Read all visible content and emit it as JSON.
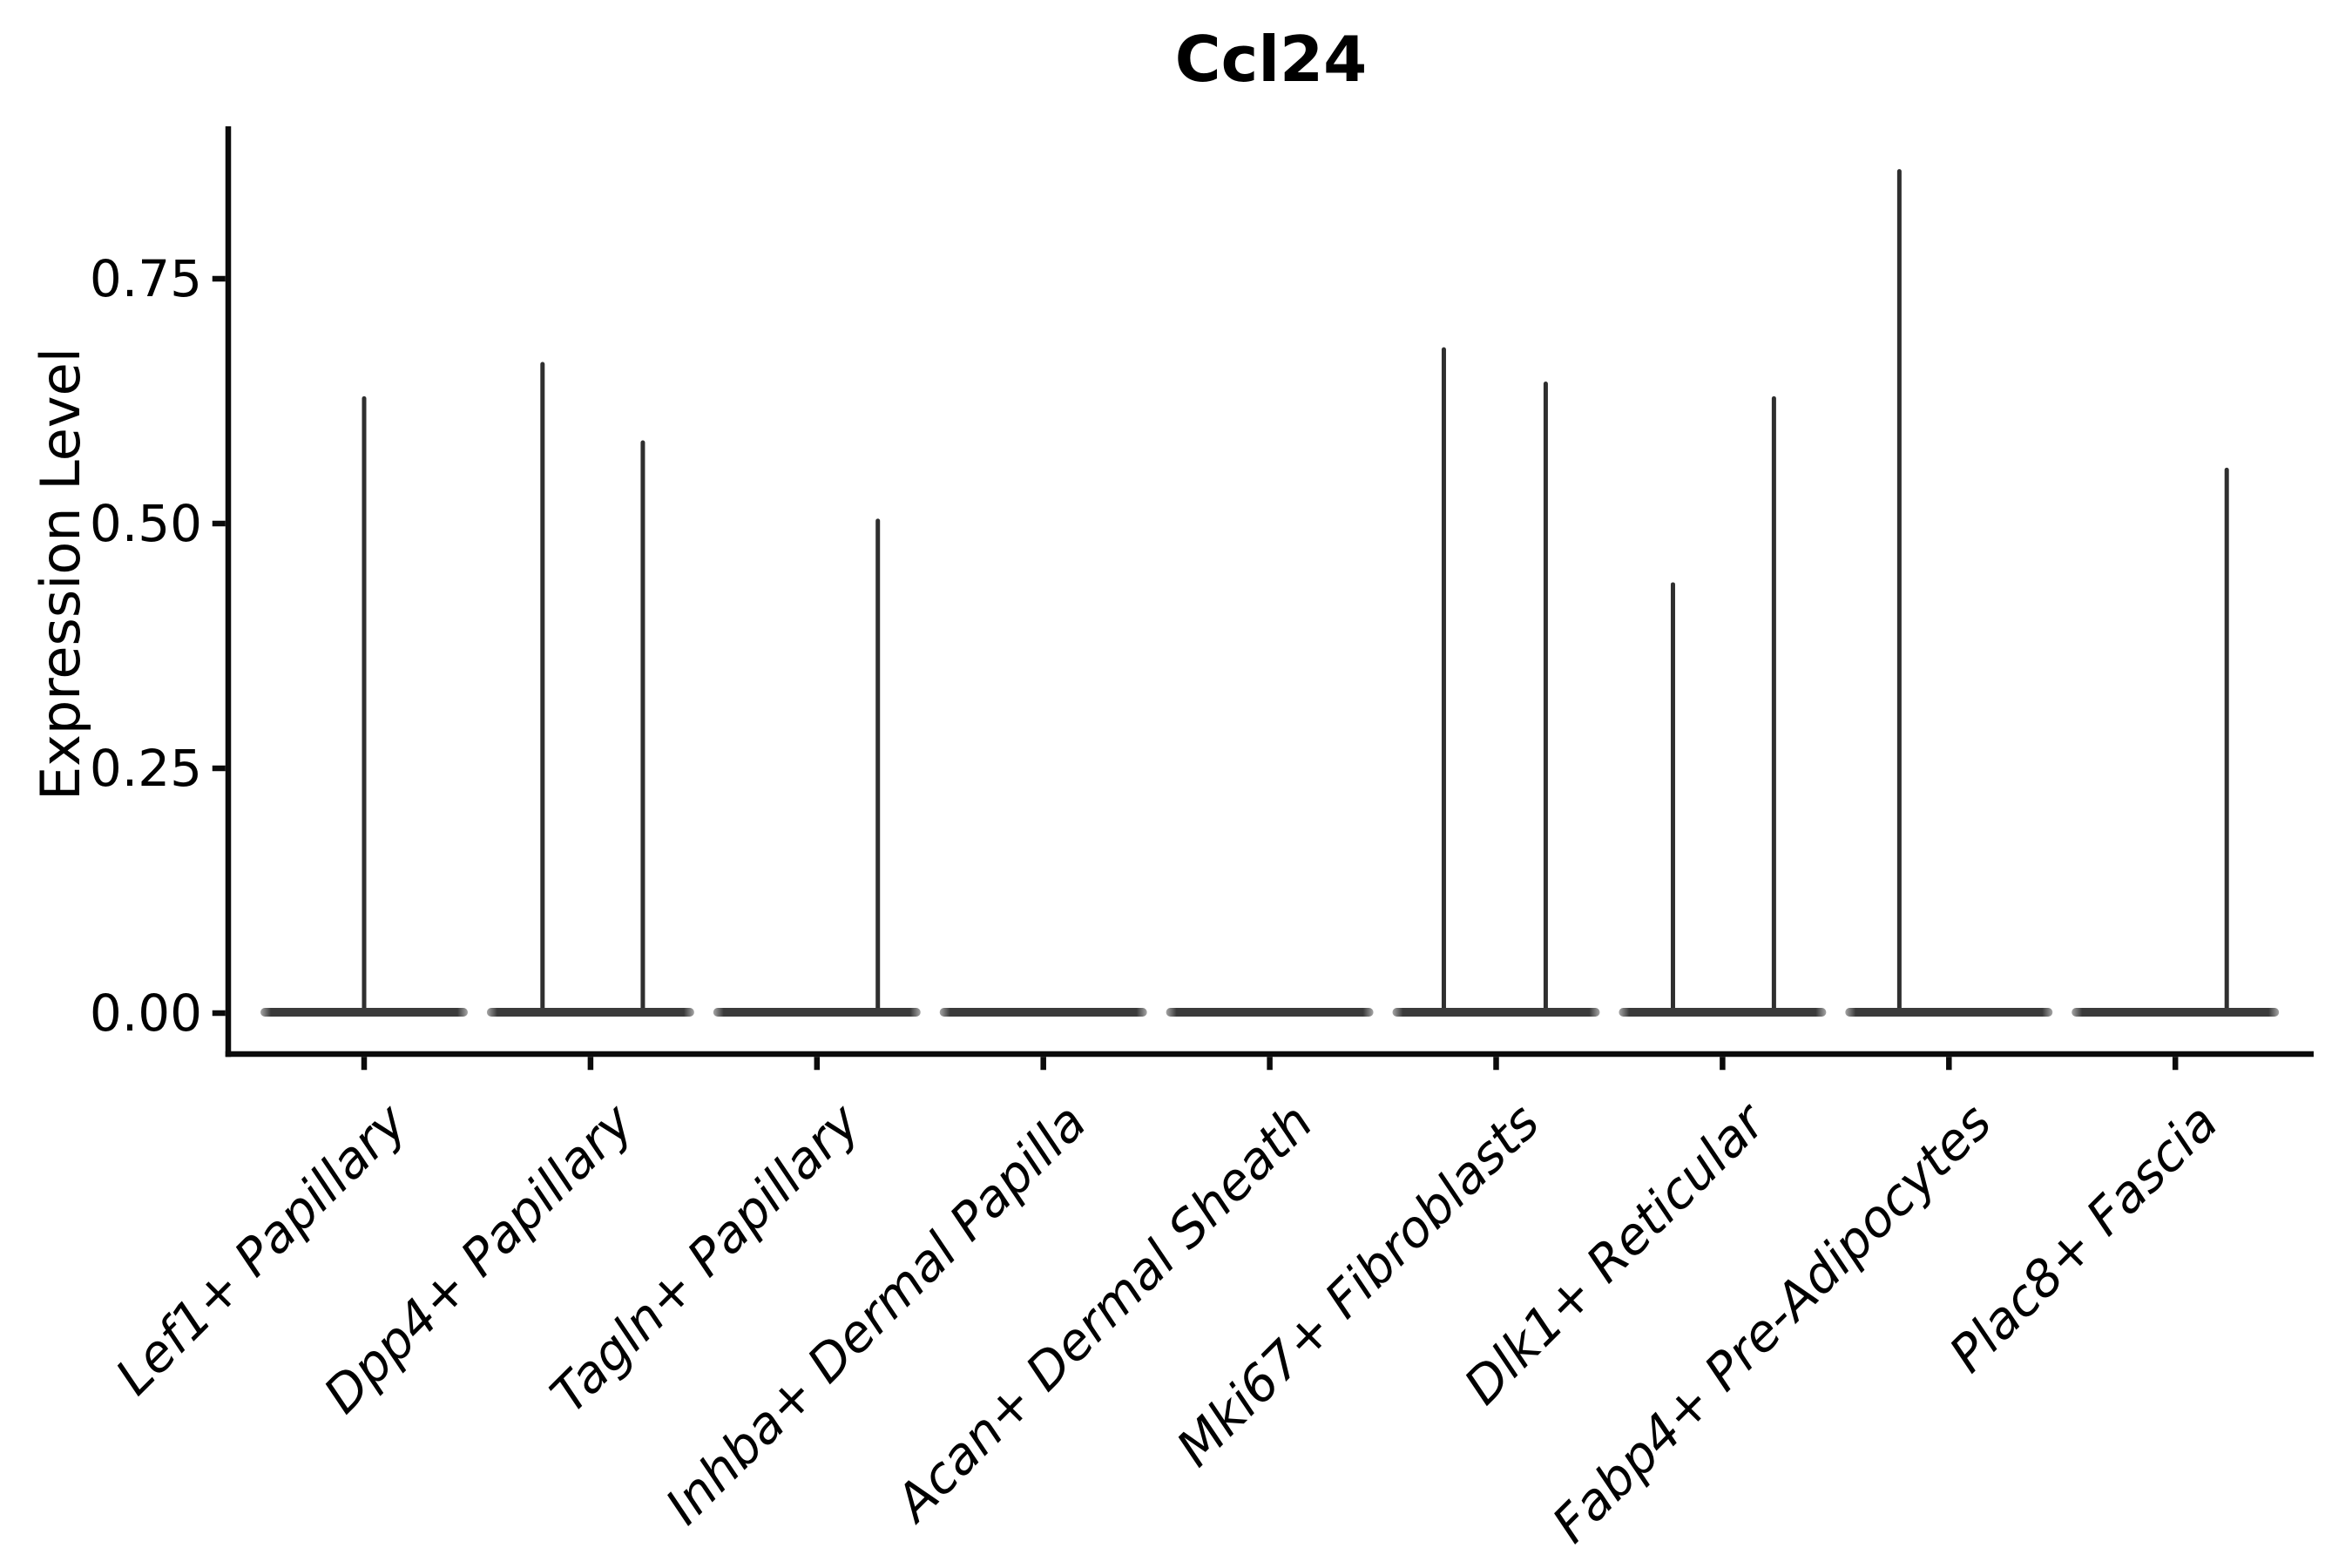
{
  "chart_data": {
    "type": "violin",
    "title": "Ccl24",
    "ylabel": "Expression Level",
    "yticks": [
      {
        "label": "0.00",
        "value": 0.0
      },
      {
        "label": "0.25",
        "value": 0.25
      },
      {
        "label": "0.50",
        "value": 0.5
      },
      {
        "label": "0.75",
        "value": 0.75
      }
    ],
    "ylim": [
      -0.043,
      0.905
    ],
    "grid": false,
    "legend": false,
    "categories": [
      "Lef1+ Papillary",
      "Dpp4+ Papillary",
      "Tagln+ Papillary",
      "Inhba+ Dermal Papilla",
      "Acan+ Dermal Sheath",
      "Mki67+ Fibroblasts",
      "Dlk1+ Reticular",
      "Fabp4+ Pre-Adipocytes",
      "Plac8+ Fascia"
    ],
    "series": [
      {
        "category": "Lef1+ Papillary",
        "body_at_zero": true,
        "spikes": [
          {
            "dx": 0.0,
            "value": 0.63
          }
        ]
      },
      {
        "category": "Dpp4+ Papillary",
        "body_at_zero": true,
        "spikes": [
          {
            "dx": -0.212,
            "value": 0.665
          },
          {
            "dx": 0.231,
            "value": 0.585
          }
        ]
      },
      {
        "category": "Tagln+ Papillary",
        "body_at_zero": true,
        "spikes": [
          {
            "dx": 0.269,
            "value": 0.505
          }
        ]
      },
      {
        "category": "Inhba+ Dermal Papilla",
        "body_at_zero": true,
        "spikes": []
      },
      {
        "category": "Acan+ Dermal Sheath",
        "body_at_zero": true,
        "spikes": []
      },
      {
        "category": "Mki67+ Fibroblasts",
        "body_at_zero": true,
        "spikes": [
          {
            "dx": -0.231,
            "value": 0.68
          },
          {
            "dx": 0.219,
            "value": 0.645
          }
        ]
      },
      {
        "category": "Dlk1+ Reticular",
        "body_at_zero": true,
        "spikes": [
          {
            "dx": -0.219,
            "value": 0.44
          },
          {
            "dx": 0.227,
            "value": 0.63
          }
        ]
      },
      {
        "category": "Fabp4+ Pre-Adipocytes",
        "body_at_zero": true,
        "spikes": [
          {
            "dx": -0.219,
            "value": 0.862
          }
        ]
      },
      {
        "category": "Plac8+ Fascia",
        "body_at_zero": true,
        "spikes": [
          {
            "dx": 0.227,
            "value": 0.557
          }
        ]
      }
    ],
    "colors": {
      "violin_body": "#3a3a3a",
      "spike": "#2f2f2f",
      "axis": "#0b0b0b",
      "text": "#000000",
      "background": "#ffffff"
    }
  }
}
